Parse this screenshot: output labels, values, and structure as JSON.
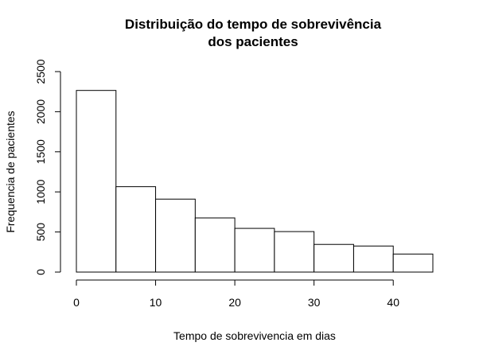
{
  "chart_data": {
    "type": "bar",
    "title_lines": [
      "Distribuição do tempo de sobrevivência",
      "dos pacientes"
    ],
    "xlabel": "Tempo de sobrevivencia em dias",
    "ylabel": "Frequencia de pacientes",
    "bins": [
      {
        "x0": 0,
        "x1": 5,
        "count": 2265
      },
      {
        "x0": 5,
        "x1": 10,
        "count": 1065
      },
      {
        "x0": 10,
        "x1": 15,
        "count": 910
      },
      {
        "x0": 15,
        "x1": 20,
        "count": 675
      },
      {
        "x0": 20,
        "x1": 25,
        "count": 545
      },
      {
        "x0": 25,
        "x1": 30,
        "count": 505
      },
      {
        "x0": 30,
        "x1": 35,
        "count": 345
      },
      {
        "x0": 35,
        "x1": 40,
        "count": 325
      },
      {
        "x0": 40,
        "x1": 45,
        "count": 225
      }
    ],
    "xlim": [
      0,
      45
    ],
    "ylim": [
      0,
      2500
    ],
    "x_ticks": [
      0,
      10,
      20,
      30,
      40
    ],
    "y_ticks": [
      0,
      500,
      1000,
      1500,
      2000,
      2500
    ],
    "grid": false,
    "bar_fill": "#ffffff",
    "bar_stroke": "#000000"
  }
}
